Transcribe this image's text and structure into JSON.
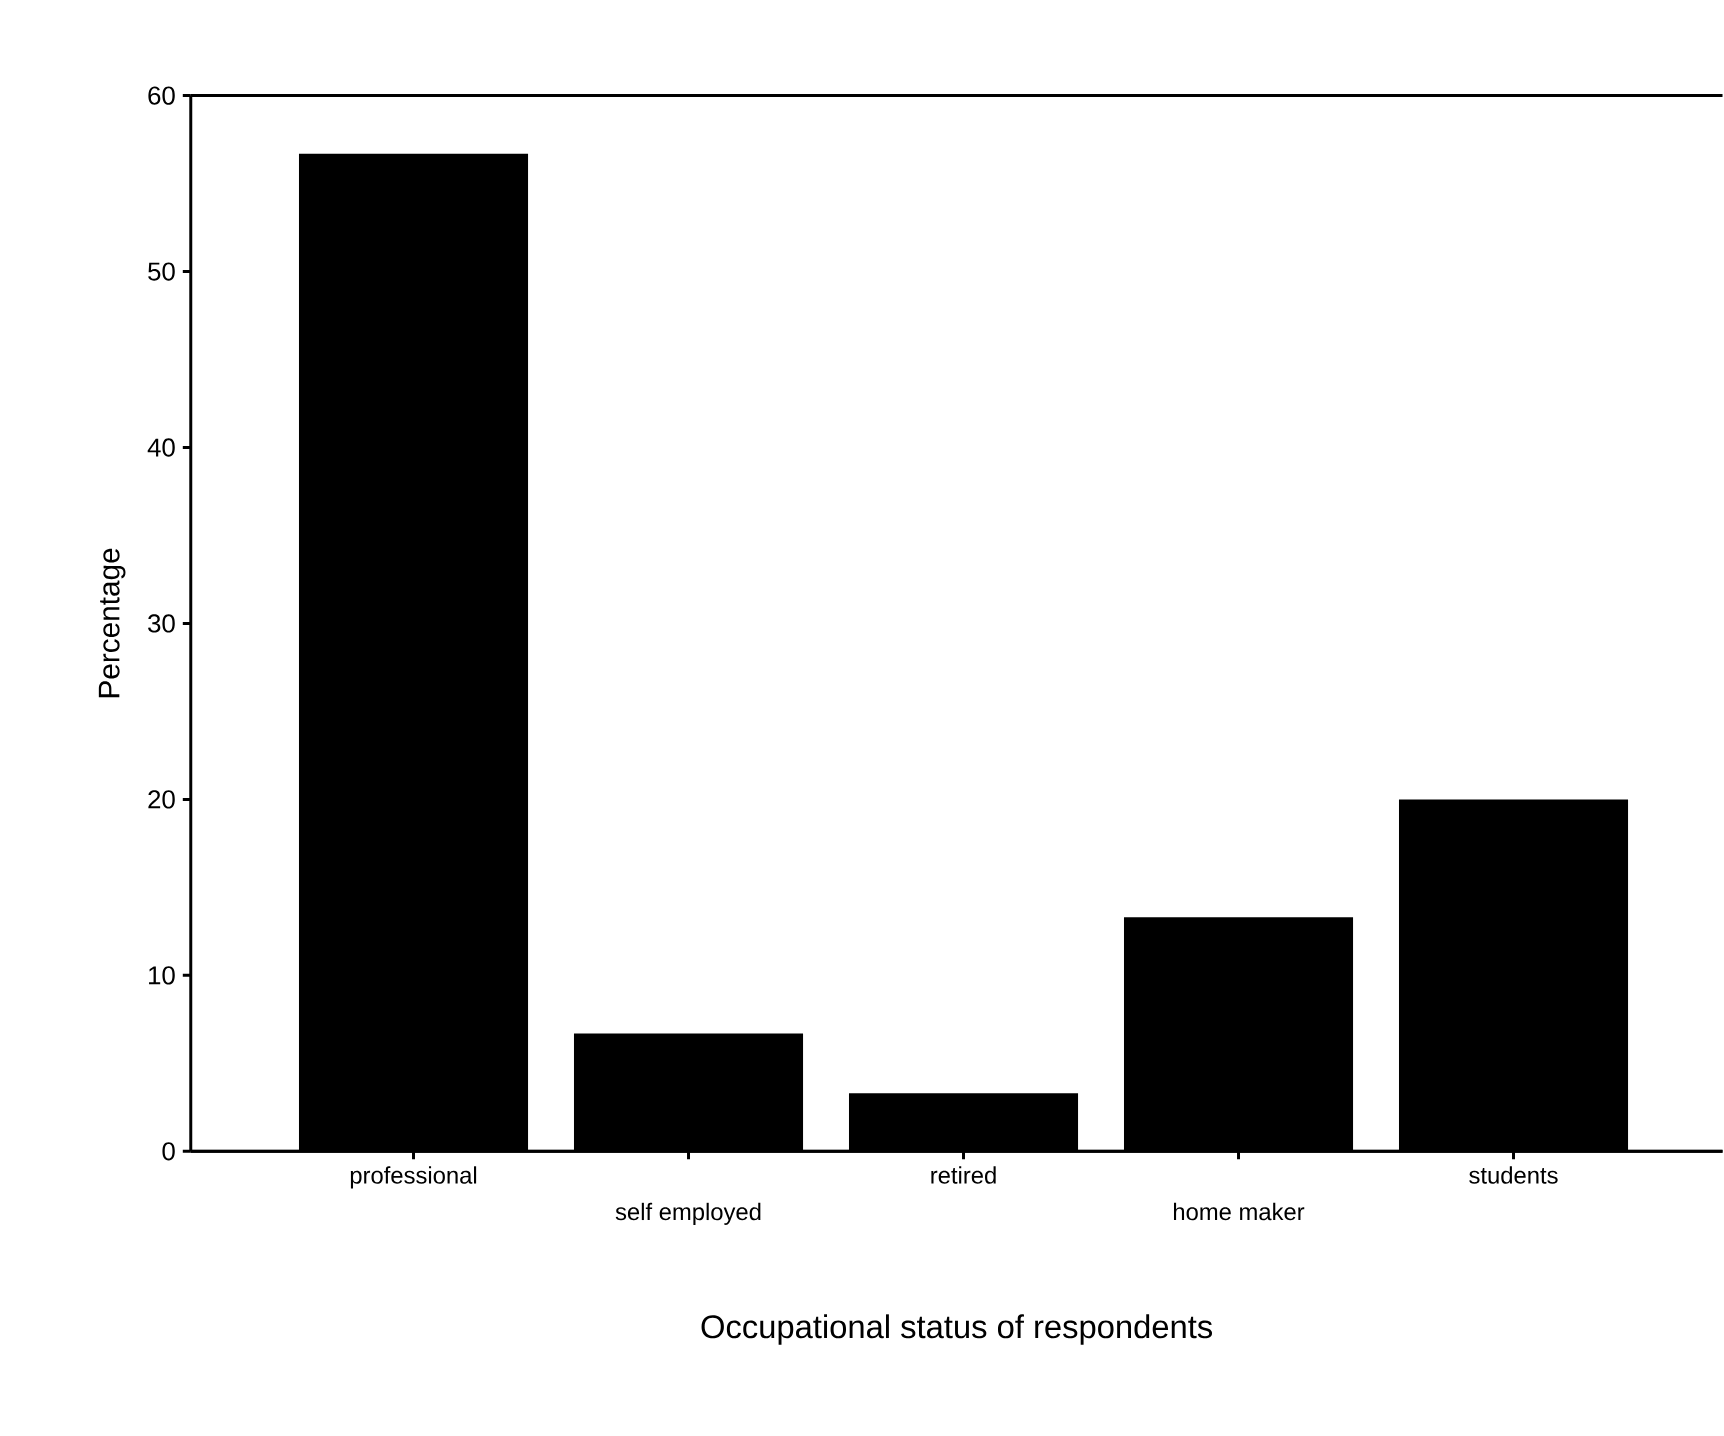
{
  "chart_data": {
    "type": "bar",
    "xlabel": "Occupational status of respondents",
    "ylabel": "Percentage",
    "categories": [
      "professional",
      "self employed",
      "retired",
      "home maker",
      "students"
    ],
    "values": [
      56.7,
      6.7,
      3.3,
      13.3,
      20
    ],
    "color": "#000000",
    "ylim": [
      0,
      60
    ],
    "yticks": [
      0,
      10,
      20,
      30,
      40,
      50,
      60
    ]
  }
}
